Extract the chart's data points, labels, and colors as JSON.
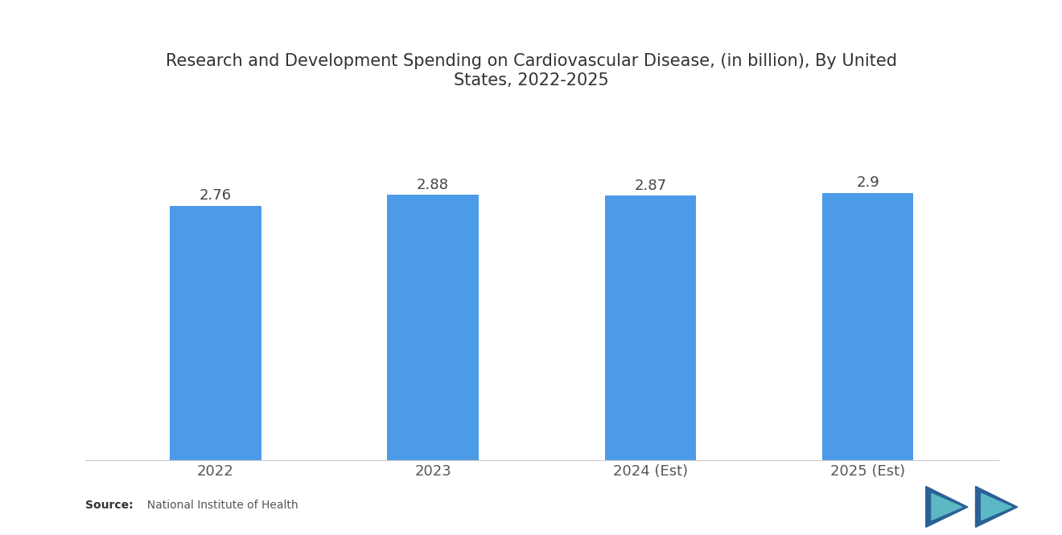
{
  "title": "Research and Development Spending on Cardiovascular Disease, (in billion), By United\nStates, 2022-2025",
  "categories": [
    "2022",
    "2023",
    "2024 (Est)",
    "2025 (Est)"
  ],
  "values": [
    2.76,
    2.88,
    2.87,
    2.9
  ],
  "bar_color": "#4C9BE8",
  "background_color": "#FFFFFF",
  "title_fontsize": 15,
  "label_fontsize": 13,
  "tick_fontsize": 13,
  "source_bold": "Source:",
  "source_rest": "  National Institute of Health",
  "ylim": [
    0,
    3.6
  ],
  "bar_width": 0.42
}
